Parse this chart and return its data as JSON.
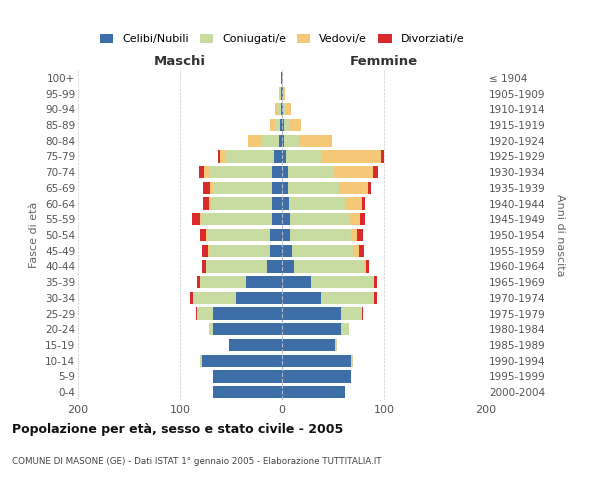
{
  "age_groups": [
    "100+",
    "95-99",
    "90-94",
    "85-89",
    "80-84",
    "75-79",
    "70-74",
    "65-69",
    "60-64",
    "55-59",
    "50-54",
    "45-49",
    "40-44",
    "35-39",
    "30-34",
    "25-29",
    "20-24",
    "15-19",
    "10-14",
    "5-9",
    "0-4"
  ],
  "birth_years": [
    "≤ 1904",
    "1905-1909",
    "1910-1914",
    "1915-1919",
    "1920-1924",
    "1925-1929",
    "1930-1934",
    "1935-1939",
    "1940-1944",
    "1945-1949",
    "1950-1954",
    "1955-1959",
    "1960-1964",
    "1965-1969",
    "1970-1974",
    "1975-1979",
    "1980-1984",
    "1985-1989",
    "1990-1994",
    "1995-1999",
    "2000-2004"
  ],
  "males": {
    "celibi": [
      1,
      1,
      1,
      2,
      3,
      8,
      10,
      10,
      10,
      10,
      12,
      12,
      15,
      35,
      45,
      68,
      68,
      52,
      78,
      68,
      68
    ],
    "coniugati": [
      0,
      1,
      3,
      5,
      18,
      48,
      62,
      58,
      60,
      68,
      62,
      60,
      60,
      45,
      42,
      15,
      4,
      0,
      2,
      0,
      0
    ],
    "vedovi": [
      0,
      1,
      3,
      5,
      12,
      5,
      4,
      3,
      2,
      2,
      1,
      1,
      0,
      0,
      0,
      0,
      0,
      0,
      0,
      0,
      0
    ],
    "divorziati": [
      0,
      0,
      0,
      0,
      0,
      2,
      5,
      6,
      5,
      8,
      5,
      5,
      3,
      3,
      3,
      1,
      0,
      0,
      0,
      0,
      0
    ]
  },
  "females": {
    "nubili": [
      0,
      1,
      1,
      2,
      2,
      4,
      6,
      6,
      7,
      8,
      8,
      10,
      12,
      28,
      38,
      58,
      58,
      52,
      68,
      68,
      62
    ],
    "coniugate": [
      0,
      0,
      2,
      5,
      15,
      35,
      45,
      50,
      55,
      58,
      60,
      60,
      68,
      62,
      52,
      20,
      8,
      2,
      2,
      0,
      0
    ],
    "vedove": [
      0,
      2,
      6,
      12,
      32,
      58,
      38,
      28,
      16,
      10,
      6,
      5,
      2,
      0,
      0,
      0,
      0,
      0,
      0,
      0,
      0
    ],
    "divorziate": [
      0,
      0,
      0,
      0,
      0,
      3,
      5,
      3,
      3,
      5,
      5,
      5,
      3,
      3,
      3,
      1,
      0,
      0,
      0,
      0,
      0
    ]
  },
  "colors": {
    "celibi": "#3d6ea8",
    "coniugati": "#c8dba0",
    "vedovi": "#f5c878",
    "divorziati": "#d92b2b"
  },
  "xlim": 200,
  "title": "Popolazione per età, sesso e stato civile - 2005",
  "subtitle": "COMUNE DI MASONE (GE) - Dati ISTAT 1° gennaio 2005 - Elaborazione TUTTITALIA.IT",
  "ylabel_left": "Fasce di età",
  "ylabel_right": "Anni di nascita",
  "xlabel_left": "Maschi",
  "xlabel_right": "Femmine",
  "legend_labels": [
    "Celibi/Nubili",
    "Coniugati/e",
    "Vedovi/e",
    "Divorziati/e"
  ]
}
